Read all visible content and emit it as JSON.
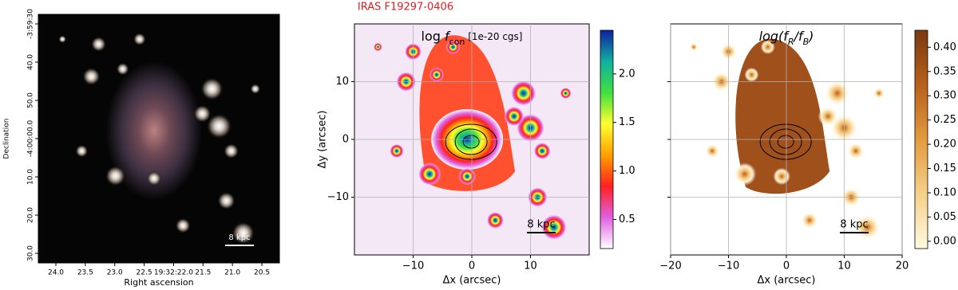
{
  "title": "IRAS F19297-0406",
  "chart_data": [
    {
      "type": "image",
      "style": "rgb",
      "xlabel": "Right ascension",
      "ylabel": "Declination",
      "xtick_labels": [
        "24.0",
        "23.5",
        "23.0",
        "22.5",
        "19:32:22.0",
        "21.5",
        "21.0",
        "20.5"
      ],
      "ytick_labels": [
        "-3:59:30",
        "40.0",
        "50.0",
        "-4:00:00.0",
        "10.0",
        "20.0",
        "30.0"
      ],
      "scalebar": "8 kpc"
    },
    {
      "type": "image",
      "style": "rainbow",
      "xlabel": "Δx (arcsec)",
      "ylabel": "Δy (arcsec)",
      "xlim": [
        -20,
        20
      ],
      "ylim": [
        -20,
        20
      ],
      "xticks": [
        {
          "value": -10,
          "label": "−10"
        },
        0,
        10
      ],
      "yticks": [
        {
          "value": -10,
          "label": "−10"
        },
        0,
        10
      ],
      "grid": true,
      "annotation": [
        "log ",
        "f",
        "con",
        " [1e-20 cgs]"
      ],
      "scalebar": "8 kpc",
      "cmap": [
        "#ffffff",
        "#e060e0",
        "#ff2020",
        "#ffa000",
        "#ffff30",
        "#40e040",
        "#10b0a0",
        "#1020a0"
      ],
      "colorbar": {
        "lim": [
          0.2,
          2.45
        ],
        "ticks": [
          0.5,
          {
            "value": 1.0,
            "label": "1.0"
          },
          1.5,
          {
            "value": 2.0,
            "label": "2.0"
          }
        ]
      }
    },
    {
      "type": "image",
      "style": "copper",
      "xlabel": "Δx (arcsec)",
      "xlim": [
        -20,
        20
      ],
      "ylim": [
        -20,
        20
      ],
      "xticks": [
        {
          "value": -20,
          "label": "−20"
        },
        {
          "value": -10,
          "label": "−10"
        },
        0,
        10,
        20
      ],
      "yticks": [
        -10,
        0,
        10
      ],
      "grid": true,
      "annotation": [
        "log(f",
        "R",
        "/f",
        "B",
        ")"
      ],
      "scalebar": "8 kpc",
      "cmap": [
        "#fffbe0",
        "#f6d08a",
        "#e39a40",
        "#b8601a",
        "#7a3a10"
      ],
      "colorbar": {
        "lim": [
          -0.015,
          0.435
        ],
        "ticks": [
          {
            "value": 0.0,
            "label": "0.00"
          },
          0.05,
          {
            "value": 0.1,
            "label": "0.10"
          },
          0.15,
          {
            "value": 0.2,
            "label": "0.20"
          },
          0.25,
          {
            "value": 0.3,
            "label": "0.30"
          },
          0.35,
          {
            "value": 0.4,
            "label": "0.40"
          }
        ]
      }
    }
  ]
}
